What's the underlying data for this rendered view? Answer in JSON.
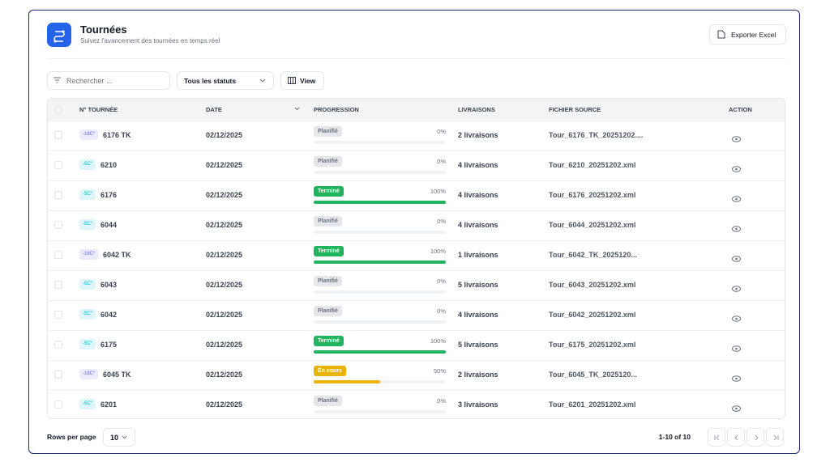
{
  "header": {
    "title": "Tournées",
    "subtitle": "Suivez l'avancement des tournées en temps réel",
    "export": "Exporter Excel"
  },
  "toolbar": {
    "search": "Rechercher ...",
    "status_filter": "Tous les statuts",
    "view": "View"
  },
  "table": {
    "columns": [
      "N° TOURNÉE",
      "DATE",
      "PROGRESSION",
      "LIVRAISONS",
      "FICHIER SOURCE",
      "ACTION"
    ],
    "progress_range": [
      0,
      100
    ],
    "rows": [
      {
        "badge": "-18C°",
        "badge_color": "#6366f1",
        "tour": "6176 TK",
        "date": "02/12/2025",
        "status": "Planifié",
        "status_color": "#e5e7eb",
        "progress": {
          "value": 0,
          "label": "0%"
        },
        "deliveries": "2 livraisons",
        "file": "Tour_6176_TK_20251202...."
      },
      {
        "badge": "-5C°",
        "badge_color": "#06b6d4",
        "tour": "6210",
        "date": "02/12/2025",
        "status": "Planifié",
        "status_color": "#e5e7eb",
        "progress": {
          "value": 0,
          "label": "0%"
        },
        "deliveries": "4 livraisons",
        "file": "Tour_6210_20251202.xml"
      },
      {
        "badge": "-5C°",
        "badge_color": "#06b6d4",
        "tour": "6176",
        "date": "02/12/2025",
        "status": "Terminé",
        "status_color": "#22b35e",
        "progress": {
          "value": 100,
          "label": "100%"
        },
        "deliveries": "4 livraisons",
        "file": "Tour_6176_20251202.xml"
      },
      {
        "badge": "-5C°",
        "badge_color": "#06b6d4",
        "tour": "6044",
        "date": "02/12/2025",
        "status": "Planifié",
        "status_color": "#e5e7eb",
        "progress": {
          "value": 0,
          "label": "0%"
        },
        "deliveries": "4 livraisons",
        "file": "Tour_6044_20251202.xml"
      },
      {
        "badge": "-18C°",
        "badge_color": "#6366f1",
        "tour": "6042 TK",
        "date": "02/12/2025",
        "status": "Terminé",
        "status_color": "#22b35e",
        "progress": {
          "value": 100,
          "label": "100%"
        },
        "deliveries": "1 livraisons",
        "file": "Tour_6042_TK_2025120..."
      },
      {
        "badge": "-5C°",
        "badge_color": "#06b6d4",
        "tour": "6043",
        "date": "02/12/2025",
        "status": "Planifié",
        "status_color": "#e5e7eb",
        "progress": {
          "value": 0,
          "label": "0%"
        },
        "deliveries": "5 livraisons",
        "file": "Tour_6043_20251202.xml"
      },
      {
        "badge": "-5C°",
        "badge_color": "#06b6d4",
        "tour": "6042",
        "date": "02/12/2025",
        "status": "Planifié",
        "status_color": "#e5e7eb",
        "progress": {
          "value": 0,
          "label": "0%"
        },
        "deliveries": "4 livraisons",
        "file": "Tour_6042_20251202.xml"
      },
      {
        "badge": "-5C°",
        "badge_color": "#06b6d4",
        "tour": "6175",
        "date": "02/12/2025",
        "status": "Terminé",
        "status_color": "#22b35e",
        "progress": {
          "value": 100,
          "label": "100%"
        },
        "deliveries": "5 livraisons",
        "file": "Tour_6175_20251202.xml"
      },
      {
        "badge": "-18C°",
        "badge_color": "#6366f1",
        "tour": "6045 TK",
        "date": "02/12/2025",
        "status": "En cours",
        "status_color": "#eab308",
        "progress": {
          "value": 50,
          "label": "50%"
        },
        "deliveries": "2 livraisons",
        "file": "Tour_6045_TK_2025120..."
      },
      {
        "badge": "-5C°",
        "badge_color": "#06b6d4",
        "tour": "6201",
        "date": "02/12/2025",
        "status": "Planifié",
        "status_color": "#e5e7eb",
        "progress": {
          "value": 0,
          "label": "0%"
        },
        "deliveries": "3 livraisons",
        "file": "Tour_6201_20251202.xml"
      }
    ]
  },
  "footer": {
    "rows_per_page_label": "Rows per page",
    "rows_per_page": "10",
    "range": "1-10 of 10"
  }
}
